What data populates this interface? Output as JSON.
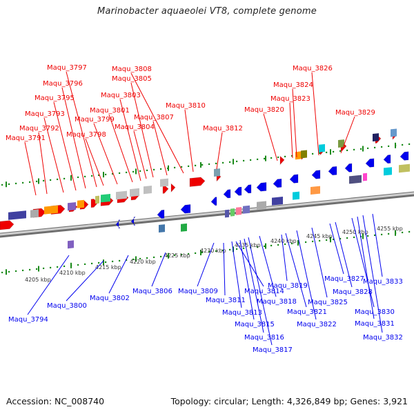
{
  "title": "Marinobacter aquaeolei VT8, complete genome",
  "footer": {
    "accession": "Accession: NC_008740",
    "topology": "Topology: circular; Length: 4,326,849 bp; Genes: 3,921"
  },
  "kbp_ticks": [
    "4205 kbp",
    "4210 kbp",
    "4215 kbp",
    "4220 kbp",
    "4225 kbp",
    "4230 kbp",
    "4235 kbp",
    "4240 kbp",
    "4245 kbp",
    "4250 kbp",
    "4255 kbp"
  ],
  "top_labels": [
    "Maqu_3791",
    "Maqu_3792",
    "Maqu_3793",
    "Maqu_3795",
    "Maqu_3796",
    "Maqu_3797",
    "Maqu_3798",
    "Maqu_3799",
    "Maqu_3801",
    "Maqu_3803",
    "Maqu_3804",
    "Maqu_3805",
    "Maqu_3807",
    "Maqu_3808",
    "Maqu_3810",
    "Maqu_3812",
    "Maqu_3820",
    "Maqu_3823",
    "Maqu_3824",
    "Maqu_3826",
    "Maqu_3829"
  ],
  "bottom_labels": [
    "Maqu_3794",
    "Maqu_3800",
    "Maqu_3802",
    "Maqu_3806",
    "Maqu_3809",
    "Maqu_3811",
    "Maqu_3813",
    "Maqu_3814",
    "Maqu_3815",
    "Maqu_3816",
    "Maqu_3817",
    "Maqu_3818",
    "Maqu_3819",
    "Maqu_3821",
    "Maqu_3822",
    "Maqu_3825",
    "Maqu_3827",
    "Maqu_3828",
    "Maqu_3830",
    "Maqu_3831",
    "Maqu_3832",
    "Maqu_3833"
  ],
  "colors": {
    "forward": "#ee0000",
    "reverse": "#0000ee",
    "backbone": "#999999",
    "ticks": "#1a8a1a"
  }
}
